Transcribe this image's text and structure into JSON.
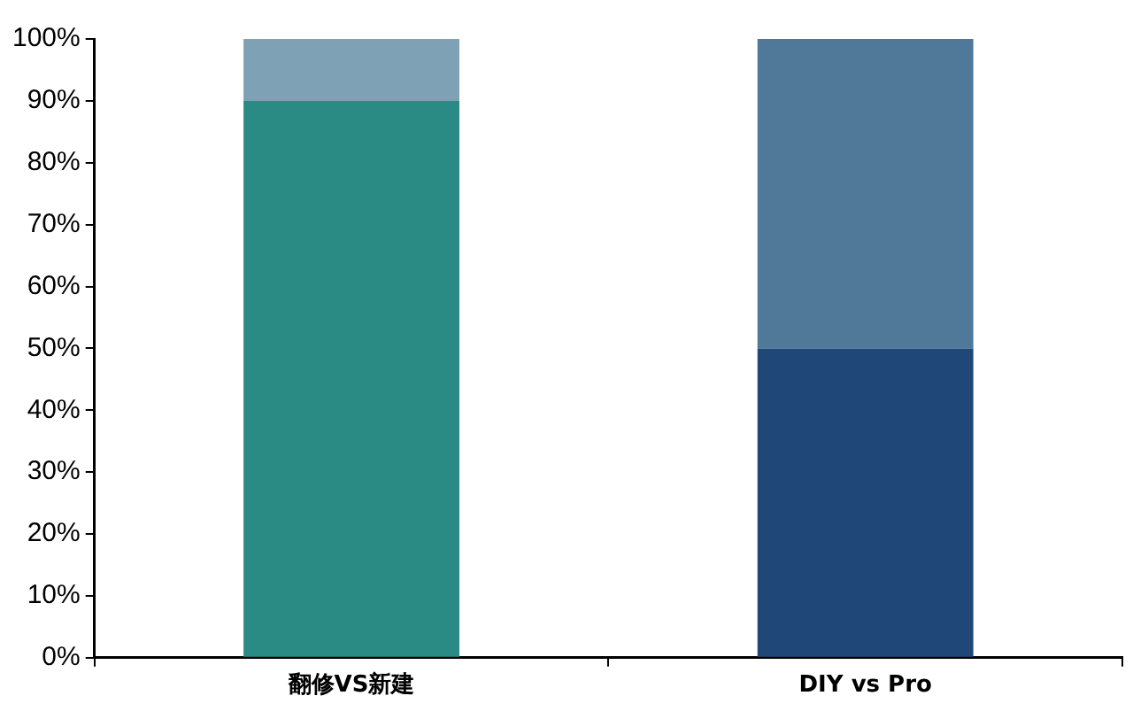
{
  "chart_data": {
    "type": "bar",
    "stacked": true,
    "categories": [
      "翻修VS新建",
      "DIY vs Pro"
    ],
    "series": [
      {
        "values": [
          90,
          50
        ],
        "colors": [
          "#2a8a84",
          "#1f4878"
        ]
      },
      {
        "values": [
          10,
          50
        ],
        "colors": [
          "#7fa1b5",
          "#4f7899"
        ]
      }
    ],
    "ylim": [
      0,
      100
    ],
    "yticks": [
      {
        "value": 0,
        "label": "0%"
      },
      {
        "value": 10,
        "label": "10%"
      },
      {
        "value": 20,
        "label": "20%"
      },
      {
        "value": 30,
        "label": "30%"
      },
      {
        "value": 40,
        "label": "40%"
      },
      {
        "value": 50,
        "label": "50%"
      },
      {
        "value": 60,
        "label": "60%"
      },
      {
        "value": 70,
        "label": "70%"
      },
      {
        "value": 80,
        "label": "80%"
      },
      {
        "value": 90,
        "label": "90%"
      },
      {
        "value": 100,
        "label": "100%"
      }
    ],
    "grid": false,
    "legend": false
  }
}
